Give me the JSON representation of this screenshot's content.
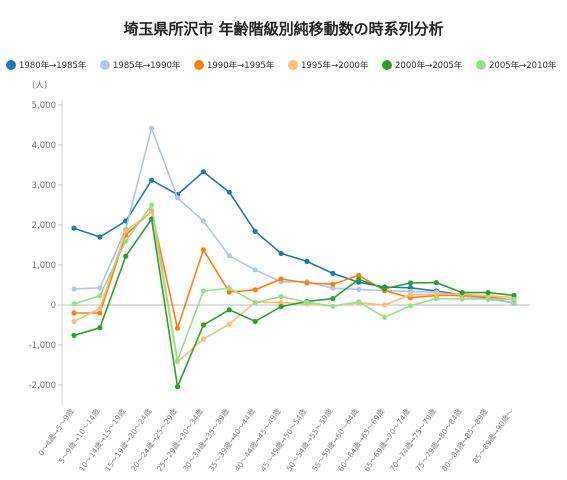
{
  "chart_data": {
    "type": "line",
    "title": "埼玉県所沢市 年齢階級別純移動数の時系列分析",
    "ylabel": "(人)",
    "xlabel": "",
    "ylim": [
      -2500,
      5000
    ],
    "yticks": [
      5000,
      4000,
      3000,
      2000,
      1000,
      0,
      -1000,
      -2000
    ],
    "ytick_labels": [
      "5,000",
      "4,000",
      "3,000",
      "2,000",
      "1,000",
      "0",
      "-1,000",
      "-2,000"
    ],
    "grid": "horizontal-zero-line",
    "legend_position": "top",
    "categories": [
      "0～4歳→5～9歳",
      "5～9歳→10～14歳",
      "10～14歳→15～19歳",
      "15～19歳→20～24歳",
      "20～24歳→25～29歳",
      "25～29歳→30～34歳",
      "30～34歳→35～39歳",
      "35～39歳→40～44歳",
      "40～44歳→45～49歳",
      "45～49歳→50～54歳",
      "50～54歳→55～59歳",
      "55～59歳→60～64歳",
      "60～64歳→65～69歳",
      "65～69歳→70～74歳",
      "70～74歳→75～79歳",
      "75～79歳→80～84歳",
      "80～84歳→85～89歳",
      "85～89歳→90歳～"
    ],
    "series": [
      {
        "name": "1980年→1985年",
        "color": "#1f77b4",
        "values": [
          1920,
          1700,
          2100,
          3120,
          2760,
          3330,
          2820,
          1840,
          1290,
          1090,
          790,
          570,
          450,
          430,
          350,
          250,
          170,
          50
        ]
      },
      {
        "name": "1985年→1990年",
        "color": "#aec7e8",
        "values": [
          400,
          430,
          1900,
          4420,
          2680,
          2100,
          1230,
          880,
          580,
          580,
          420,
          390,
          360,
          340,
          320,
          220,
          140,
          60
        ]
      },
      {
        "name": "1990年→1995年",
        "color": "#ff7f0e",
        "values": [
          -200,
          -200,
          1750,
          2350,
          -580,
          1380,
          320,
          380,
          650,
          550,
          520,
          740,
          360,
          180,
          240,
          240,
          200,
          130
        ]
      },
      {
        "name": "1995年→2000年",
        "color": "#ffbb78",
        "values": [
          -410,
          -90,
          1850,
          2330,
          -1420,
          -850,
          -480,
          70,
          60,
          30,
          -30,
          60,
          0,
          260,
          270,
          270,
          230,
          190
        ]
      },
      {
        "name": "2000年→2005年",
        "color": "#2ca02c",
        "values": [
          -760,
          -570,
          1220,
          2150,
          -2040,
          -500,
          -120,
          -410,
          -40,
          90,
          160,
          640,
          410,
          550,
          560,
          310,
          310,
          240
        ]
      },
      {
        "name": "2005年→2010年",
        "color": "#98df8a",
        "values": [
          30,
          230,
          1600,
          2500,
          -1380,
          350,
          420,
          60,
          210,
          70,
          -30,
          80,
          -310,
          -20,
          160,
          150,
          150,
          140
        ]
      }
    ]
  }
}
